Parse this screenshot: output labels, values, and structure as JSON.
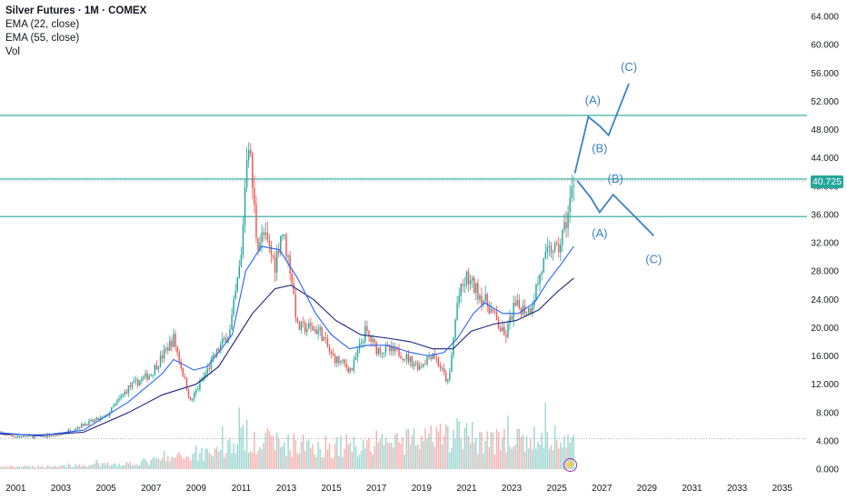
{
  "chart_data": {
    "type": "candlestick",
    "title": "Silver Futures · 1M · COMEX",
    "indicators": [
      "EMA (22, close)",
      "EMA (55, close)",
      "Vol"
    ],
    "last_price": "40.725",
    "x_ticks": [
      "2001",
      "2003",
      "2005",
      "2007",
      "2009",
      "2011",
      "2013",
      "2015",
      "2017",
      "2019",
      "2021",
      "2023",
      "2025",
      "2027",
      "2029",
      "2031",
      "2033",
      "2035"
    ],
    "y_ticks": [
      "64.000",
      "60.000",
      "56.000",
      "52.000",
      "48.000",
      "44.000",
      "40.000",
      "36.000",
      "32.000",
      "28.000",
      "24.000",
      "20.000",
      "16.000",
      "12.000",
      "8.000",
      "4.000",
      "0.000"
    ],
    "ylim": [
      0,
      64
    ],
    "xlim": [
      2000.3,
      2036.1
    ],
    "horizontal_levels": [
      50.0,
      41.0,
      35.7
    ],
    "dotted_levels": [
      40.725,
      4.3
    ],
    "price_path": [
      [
        2000.0,
        5.2
      ],
      [
        2001.0,
        4.6
      ],
      [
        2002.0,
        4.6
      ],
      [
        2003.0,
        4.9
      ],
      [
        2004.0,
        6.3
      ],
      [
        2005.0,
        7.4
      ],
      [
        2006.0,
        11.5
      ],
      [
        2007.0,
        13.5
      ],
      [
        2008.0,
        18.5
      ],
      [
        2008.75,
        9.5
      ],
      [
        2009.5,
        14.0
      ],
      [
        2010.0,
        17.0
      ],
      [
        2010.5,
        19.5
      ],
      [
        2011.0,
        30.0
      ],
      [
        2011.3,
        48.0
      ],
      [
        2011.7,
        32.0
      ],
      [
        2012.0,
        33.0
      ],
      [
        2012.5,
        29.0
      ],
      [
        2012.8,
        34.0
      ],
      [
        2013.2,
        28.0
      ],
      [
        2013.5,
        20.0
      ],
      [
        2014.0,
        20.0
      ],
      [
        2014.5,
        19.5
      ],
      [
        2015.0,
        16.0
      ],
      [
        2015.9,
        14.0
      ],
      [
        2016.5,
        19.5
      ],
      [
        2017.0,
        17.0
      ],
      [
        2018.0,
        16.5
      ],
      [
        2018.9,
        14.5
      ],
      [
        2019.5,
        16.5
      ],
      [
        2020.2,
        12.0
      ],
      [
        2020.6,
        24.0
      ],
      [
        2021.0,
        27.0
      ],
      [
        2021.5,
        25.0
      ],
      [
        2022.0,
        23.0
      ],
      [
        2022.7,
        18.5
      ],
      [
        2023.1,
        23.0
      ],
      [
        2023.8,
        22.5
      ],
      [
        2024.4,
        29.0
      ],
      [
        2024.8,
        31.5
      ],
      [
        2025.0,
        30.5
      ],
      [
        2025.3,
        33.5
      ],
      [
        2025.55,
        37.0
      ],
      [
        2025.75,
        40.725
      ]
    ],
    "ema22": [
      [
        2000.0,
        5.2
      ],
      [
        2002.0,
        4.7
      ],
      [
        2004.0,
        5.5
      ],
      [
        2006.0,
        9.5
      ],
      [
        2007.5,
        13.5
      ],
      [
        2008.0,
        15.5
      ],
      [
        2008.9,
        14.0
      ],
      [
        2009.5,
        14.5
      ],
      [
        2010.0,
        16.5
      ],
      [
        2010.6,
        19.0
      ],
      [
        2011.2,
        28.0
      ],
      [
        2011.9,
        31.5
      ],
      [
        2012.7,
        31.0
      ],
      [
        2013.5,
        27.0
      ],
      [
        2014.3,
        22.0
      ],
      [
        2015.0,
        19.0
      ],
      [
        2015.8,
        17.0
      ],
      [
        2016.6,
        17.5
      ],
      [
        2017.5,
        17.5
      ],
      [
        2018.5,
        16.5
      ],
      [
        2019.3,
        16.0
      ],
      [
        2020.0,
        16.5
      ],
      [
        2020.6,
        18.5
      ],
      [
        2021.3,
        22.0
      ],
      [
        2021.8,
        23.5
      ],
      [
        2022.6,
        22.0
      ],
      [
        2023.3,
        22.0
      ],
      [
        2024.0,
        23.5
      ],
      [
        2024.6,
        26.5
      ],
      [
        2025.2,
        29.0
      ],
      [
        2025.75,
        31.5
      ]
    ],
    "ema55": [
      [
        2000.0,
        5.0
      ],
      [
        2002.0,
        4.8
      ],
      [
        2004.0,
        5.2
      ],
      [
        2006.0,
        8.0
      ],
      [
        2007.5,
        10.5
      ],
      [
        2009.0,
        12.0
      ],
      [
        2010.0,
        14.5
      ],
      [
        2010.7,
        18.0
      ],
      [
        2011.5,
        22.0
      ],
      [
        2012.5,
        25.5
      ],
      [
        2013.2,
        26.0
      ],
      [
        2014.2,
        24.0
      ],
      [
        2015.2,
        21.0
      ],
      [
        2016.3,
        19.0
      ],
      [
        2017.5,
        18.5
      ],
      [
        2018.5,
        18.0
      ],
      [
        2019.5,
        17.0
      ],
      [
        2020.4,
        17.0
      ],
      [
        2021.2,
        19.5
      ],
      [
        2022.2,
        20.5
      ],
      [
        2023.2,
        21.0
      ],
      [
        2024.2,
        22.5
      ],
      [
        2025.0,
        25.0
      ],
      [
        2025.75,
        27.0
      ]
    ],
    "volume_envelope": [
      [
        2000.0,
        0.4
      ],
      [
        2002.0,
        0.5
      ],
      [
        2004.0,
        0.7
      ],
      [
        2006.0,
        1.1
      ],
      [
        2007.5,
        1.8
      ],
      [
        2009.0,
        2.8
      ],
      [
        2010.5,
        4.5
      ],
      [
        2011.3,
        6.5
      ],
      [
        2012.5,
        5.0
      ],
      [
        2014.0,
        4.6
      ],
      [
        2015.0,
        4.4
      ],
      [
        2017.0,
        5.0
      ],
      [
        2018.5,
        5.2
      ],
      [
        2020.0,
        6.0
      ],
      [
        2020.6,
        7.0
      ],
      [
        2021.5,
        6.0
      ],
      [
        2022.5,
        5.5
      ],
      [
        2023.5,
        5.2
      ],
      [
        2024.5,
        6.2
      ],
      [
        2025.75,
        5.0
      ]
    ],
    "projections": [
      {
        "path": [
          [
            2025.8,
            41.8
          ],
          [
            2026.4,
            49.8
          ],
          [
            2026.9,
            48.5
          ],
          [
            2027.3,
            47.2
          ],
          [
            2028.2,
            54.5
          ]
        ],
        "labels": [
          {
            "text": "(A)",
            "x": 2026.6,
            "y": 51.6
          },
          {
            "text": "(B)",
            "x": 2026.9,
            "y": 44.8
          },
          {
            "text": "(C)",
            "x": 2028.2,
            "y": 56.3
          }
        ]
      },
      {
        "path": [
          [
            2025.9,
            40.8
          ],
          [
            2026.5,
            38.4
          ],
          [
            2026.9,
            36.3
          ],
          [
            2027.5,
            38.8
          ],
          [
            2029.3,
            33.0
          ]
        ],
        "labels": [
          {
            "text": "(B)",
            "x": 2027.6,
            "y": 40.5
          },
          {
            "text": "(A)",
            "x": 2026.9,
            "y": 32.8
          },
          {
            "text": "(C)",
            "x": 2029.3,
            "y": 29.1
          }
        ]
      }
    ],
    "colors": {
      "up": "#26a69a",
      "down": "#ef5350",
      "ema22": "#2962ff",
      "ema55": "#1a237e",
      "level": "#26a69a",
      "projection": "#3b82c4",
      "axis_text": "#131722"
    }
  }
}
